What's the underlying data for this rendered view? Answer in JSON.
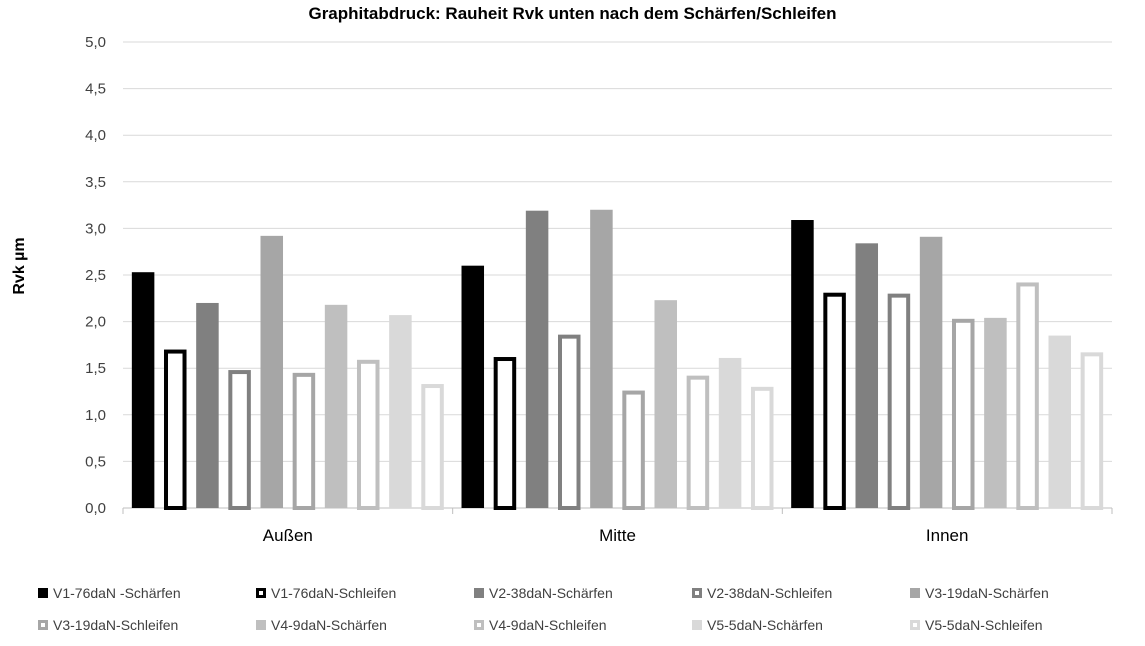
{
  "chart_data": {
    "type": "bar",
    "title": "Graphitabdruck: Rauheit Rvk unten nach dem Schärfen/Schleifen",
    "xlabel": "",
    "ylabel": "Rvk µm",
    "ylim": [
      0,
      5
    ],
    "ytick_labels": [
      "0,0",
      "0,5",
      "1,0",
      "1,5",
      "2,0",
      "2,5",
      "3,0",
      "3,5",
      "4,0",
      "4,5",
      "5,0"
    ],
    "grid": true,
    "legend_position": "bottom",
    "categories": [
      "Außen",
      "Mitte",
      "Innen"
    ],
    "series": [
      {
        "name": "V1-76daN -Schärfen",
        "values": [
          2.53,
          2.6,
          3.09
        ],
        "color": "#000000",
        "style": "filled"
      },
      {
        "name": "V1-76daN-Schleifen",
        "values": [
          1.7,
          1.62,
          2.31
        ],
        "color": "#000000",
        "style": "outline"
      },
      {
        "name": "V2-38daN-Schärfen",
        "values": [
          2.2,
          3.19,
          2.84
        ],
        "color": "#808080",
        "style": "filled"
      },
      {
        "name": "V2-38daN-Schleifen",
        "values": [
          1.48,
          1.86,
          2.3
        ],
        "color": "#808080",
        "style": "outline"
      },
      {
        "name": "V3-19daN-Schärfen",
        "values": [
          2.92,
          3.2,
          2.91
        ],
        "color": "#a6a6a6",
        "style": "filled"
      },
      {
        "name": "V3-19daN-Schleifen",
        "values": [
          1.45,
          1.26,
          2.03
        ],
        "color": "#a6a6a6",
        "style": "outline"
      },
      {
        "name": "V4-9daN-Schärfen",
        "values": [
          2.18,
          2.23,
          2.04
        ],
        "color": "#bfbfbf",
        "style": "filled"
      },
      {
        "name": "V4-9daN-Schleifen",
        "values": [
          1.59,
          1.42,
          2.42
        ],
        "color": "#bfbfbf",
        "style": "outline"
      },
      {
        "name": "V5-5daN-Schärfen",
        "values": [
          2.07,
          1.61,
          1.85
        ],
        "color": "#d9d9d9",
        "style": "filled"
      },
      {
        "name": "V5-5daN-Schleifen",
        "values": [
          1.33,
          1.3,
          1.67
        ],
        "color": "#d9d9d9",
        "style": "outline"
      }
    ]
  }
}
